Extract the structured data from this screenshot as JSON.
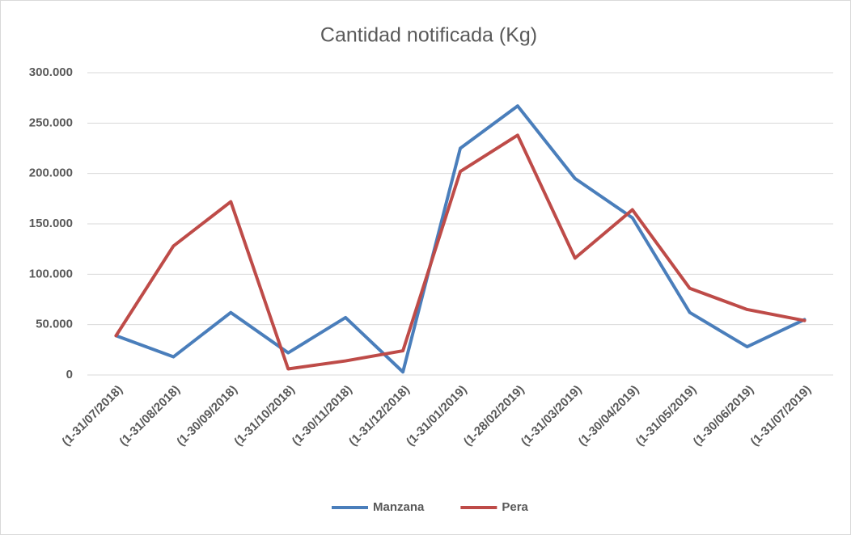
{
  "chart_data": {
    "type": "line",
    "title": "Cantidad notificada  (Kg)",
    "categories": [
      "(1-31/07/2018)",
      "(1-31/08/2018)",
      "(1-30/09/2018)",
      "(1-31/10/2018)",
      "(1-30/11/2018)",
      "(1-31/12/2018)",
      "(1-31/01/2019)",
      "(1-28/02/2019)",
      "(1-31/03/2019)",
      "(1-30/04/2019)",
      "(1-31/05/2019)",
      "(1-30/06/2019)",
      "(1-31/07/2019)"
    ],
    "series": [
      {
        "name": "Manzana",
        "color": "#4a7ebb",
        "values": [
          39000,
          18000,
          62000,
          22000,
          57000,
          3000,
          225000,
          267000,
          195000,
          156000,
          62000,
          28000,
          55000
        ]
      },
      {
        "name": "Pera",
        "color": "#be4b48",
        "values": [
          39000,
          128000,
          172000,
          6000,
          14000,
          24000,
          202000,
          238000,
          116000,
          164000,
          86000,
          65000,
          54000
        ]
      }
    ],
    "ylim": [
      0,
      300000
    ],
    "yticks": [
      0,
      {
        "value": 50000,
        "label": "50.000"
      },
      {
        "value": 100000,
        "label": "100.000"
      },
      {
        "value": 150000,
        "label": "150.000"
      },
      {
        "value": 200000,
        "label": "200.000"
      },
      {
        "value": 250000,
        "label": "250.000"
      },
      {
        "value": 300000,
        "label": "300.000"
      }
    ],
    "grid": true,
    "legend": "bottom"
  }
}
